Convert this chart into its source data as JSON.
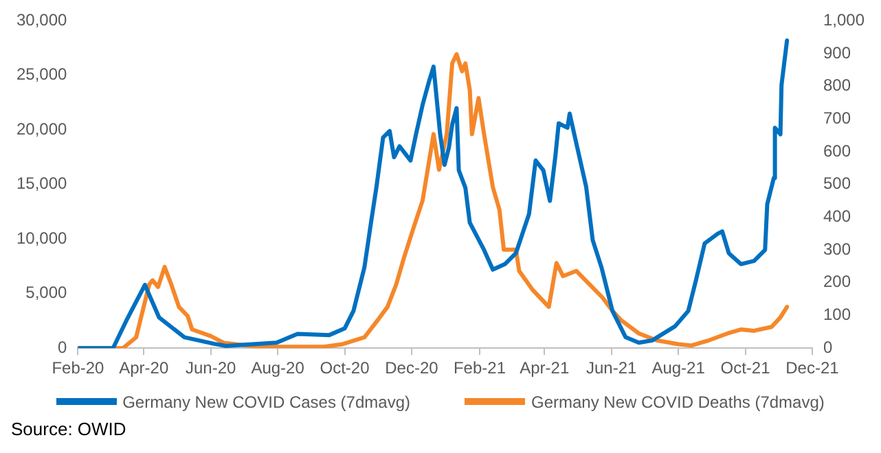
{
  "chart_data": {
    "type": "line",
    "xlim": [
      "2020-02-01",
      "2021-12-01"
    ],
    "xticks": [
      {
        "value": "2020-02-01",
        "label": "Feb-20"
      },
      {
        "value": "2020-04-01",
        "label": "Apr-20"
      },
      {
        "value": "2020-06-01",
        "label": "Jun-20"
      },
      {
        "value": "2020-08-01",
        "label": "Aug-20"
      },
      {
        "value": "2020-10-01",
        "label": "Oct-20"
      },
      {
        "value": "2020-12-01",
        "label": "Dec-20"
      },
      {
        "value": "2021-02-01",
        "label": "Feb-21"
      },
      {
        "value": "2021-04-01",
        "label": "Apr-21"
      },
      {
        "value": "2021-06-01",
        "label": "Jun-21"
      },
      {
        "value": "2021-08-01",
        "label": "Aug-21"
      },
      {
        "value": "2021-10-01",
        "label": "Oct-21"
      },
      {
        "value": "2021-12-01",
        "label": "Dec-21"
      }
    ],
    "ylim": [
      0,
      30000
    ],
    "yticks": [
      0,
      {
        "value": 5000,
        "label": "5,000"
      },
      {
        "value": 10000,
        "label": "10,000"
      },
      {
        "value": 15000,
        "label": "15,000"
      },
      {
        "value": 20000,
        "label": "20,000"
      },
      {
        "value": 25000,
        "label": "25,000"
      },
      {
        "value": 30000,
        "label": "30,000"
      }
    ],
    "y2lim": [
      0,
      1000
    ],
    "y2ticks": [
      0,
      100,
      200,
      300,
      400,
      500,
      600,
      700,
      800,
      900,
      {
        "value": 1000,
        "label": "1,000"
      }
    ],
    "grid": false,
    "legend": "bottom",
    "marker": "none",
    "line_style": "solid",
    "annotations": [
      "Source: OWID"
    ],
    "series": [
      {
        "name": "Germany New COVID Cases (7dmavg)",
        "color": "#0070c0",
        "x": [
          "2020-02-01",
          "2020-03-04",
          "2020-03-16",
          "2020-04-02",
          "2020-04-15",
          "2020-05-08",
          "2020-06-04",
          "2020-06-15",
          "2020-07-31",
          "2020-08-19",
          "2020-09-17",
          "2020-10-01",
          "2020-10-09",
          "2020-10-19",
          "2020-10-25",
          "2020-10-30",
          "2020-11-05",
          "2020-11-11",
          "2020-11-15",
          "2020-11-20",
          "2020-11-30",
          "2020-12-05",
          "2020-12-11",
          "2020-12-17",
          "2020-12-21",
          "2020-12-27",
          "2020-12-31",
          "2021-01-04",
          "2021-01-07",
          "2021-01-11",
          "2021-01-13",
          "2021-01-19",
          "2021-01-23",
          "2021-02-05",
          "2021-02-13",
          "2021-02-24",
          "2021-03-06",
          "2021-03-18",
          "2021-03-24",
          "2021-03-31",
          "2021-04-06",
          "2021-04-11",
          "2021-04-14",
          "2021-04-22",
          "2021-04-24",
          "2021-04-30",
          "2021-05-09",
          "2021-05-15",
          "2021-05-23",
          "2021-06-02",
          "2021-06-14",
          "2021-06-26",
          "2021-07-08",
          "2021-07-29",
          "2021-08-10",
          "2021-08-17",
          "2021-08-25",
          "2021-09-06",
          "2021-09-10",
          "2021-09-16",
          "2021-09-27",
          "2021-10-09",
          "2021-10-19",
          "2021-10-21",
          "2021-10-27",
          "2021-10-28",
          "2021-11-02",
          "2021-11-03",
          "2021-11-08"
        ],
        "values": [
          0,
          0,
          2500,
          5800,
          2800,
          1000,
          400,
          200,
          500,
          1300,
          1200,
          1800,
          3400,
          7400,
          11500,
          14800,
          19300,
          19900,
          17500,
          18500,
          17200,
          19600,
          22300,
          24500,
          25800,
          19600,
          16800,
          18400,
          20500,
          22000,
          16300,
          14700,
          11500,
          9000,
          7200,
          7700,
          8700,
          12300,
          17200,
          16300,
          13500,
          17600,
          20600,
          20200,
          21500,
          18800,
          14800,
          9900,
          7400,
          3400,
          1000,
          500,
          700,
          2000,
          3400,
          6200,
          9600,
          10500,
          10700,
          8700,
          7700,
          8000,
          9000,
          13200,
          15600,
          20200,
          19600,
          24100,
          28200
        ]
      },
      {
        "name": "Germany New COVID Deaths (7dmavg)",
        "color": "#f5872a",
        "axis": "y2",
        "x": [
          "2020-02-01",
          "2020-03-13",
          "2020-03-25",
          "2020-04-06",
          "2020-04-09",
          "2020-04-14",
          "2020-04-20",
          "2020-04-26",
          "2020-05-03",
          "2020-05-11",
          "2020-05-15",
          "2020-06-01",
          "2020-06-13",
          "2020-07-14",
          "2020-09-12",
          "2020-09-29",
          "2020-10-19",
          "2020-10-31",
          "2020-11-09",
          "2020-11-17",
          "2020-11-24",
          "2020-12-03",
          "2020-12-11",
          "2020-12-17",
          "2020-12-21",
          "2020-12-26",
          "2021-01-02",
          "2021-01-07",
          "2021-01-11",
          "2021-01-16",
          "2021-01-19",
          "2021-01-23",
          "2021-01-25",
          "2021-01-31",
          "2021-02-05",
          "2021-02-13",
          "2021-02-19",
          "2021-02-23",
          "2021-03-06",
          "2021-03-09",
          "2021-03-21",
          "2021-04-05",
          "2021-04-12",
          "2021-04-18",
          "2021-04-30",
          "2021-05-12",
          "2021-05-24",
          "2021-06-02",
          "2021-06-10",
          "2021-06-26",
          "2021-07-12",
          "2021-08-01",
          "2021-08-13",
          "2021-08-29",
          "2021-09-15",
          "2021-09-27",
          "2021-10-09",
          "2021-10-25",
          "2021-11-02",
          "2021-11-08"
        ],
        "values": [
          0,
          0,
          33,
          195,
          207,
          187,
          248,
          195,
          126,
          98,
          57,
          37,
          16,
          4,
          4,
          12,
          33,
          85,
          126,
          195,
          276,
          370,
          451,
          573,
          654,
          545,
          654,
          870,
          898,
          846,
          870,
          789,
          654,
          764,
          654,
          492,
          423,
          301,
          301,
          236,
          179,
          126,
          260,
          220,
          236,
          195,
          154,
          114,
          85,
          45,
          24,
          12,
          8,
          24,
          45,
          57,
          53,
          65,
          94,
          126
        ]
      }
    ]
  }
}
